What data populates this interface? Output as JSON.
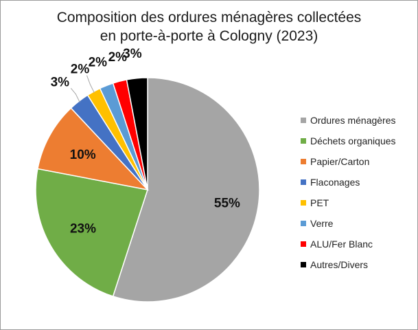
{
  "chart_data": {
    "type": "pie",
    "title_lines": [
      "Composition des ordures ménagères collectées",
      "en porte-à-porte à Cologny (2023)"
    ],
    "categories": [
      "Ordures ménagères",
      "Déchets organiques",
      "Papier/Carton",
      "Flaconages",
      "PET",
      "Verre",
      "ALU/Fer Blanc",
      "Autres/Divers"
    ],
    "values": [
      55,
      23,
      10,
      3,
      2,
      2,
      2,
      3
    ],
    "labels": [
      "55%",
      "23%",
      "10%",
      "3%",
      "2%",
      "2%",
      "2%",
      "3%"
    ],
    "colors": [
      "#a5a5a5",
      "#70ad47",
      "#ed7d31",
      "#4472c4",
      "#ffc000",
      "#5b9bd5",
      "#ff0000",
      "#000000"
    ],
    "legend_position": "right",
    "start_angle": "12 o'clock",
    "direction": "clockwise"
  }
}
